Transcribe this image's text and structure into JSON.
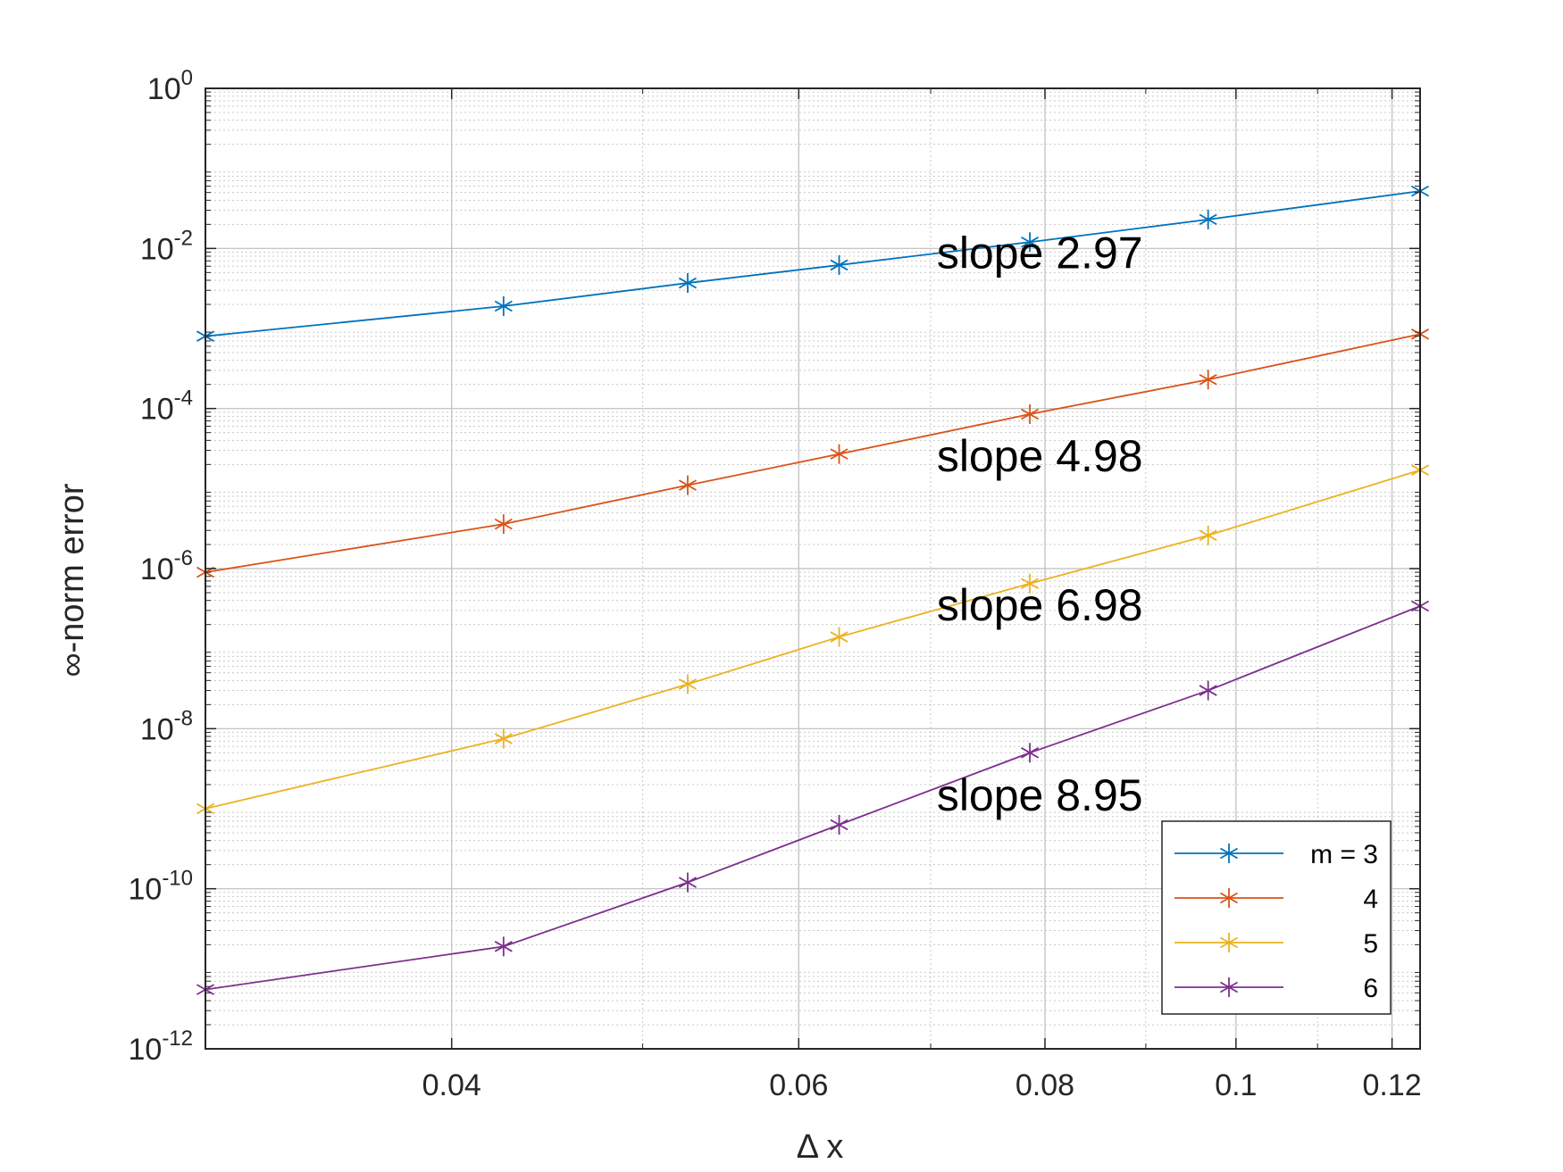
{
  "chart_data": {
    "type": "line",
    "xscale": "log",
    "yscale": "log",
    "xlabel": "Δ x",
    "ylabel": "∞-norm error",
    "xlim": [
      0.03,
      0.124
    ],
    "ylim": [
      1e-12,
      1
    ],
    "xticks": [
      {
        "value": 0.04,
        "label": "0.04"
      },
      {
        "value": 0.06,
        "label": "0.06"
      },
      {
        "value": 0.08,
        "label": "0.08"
      },
      {
        "value": 0.1,
        "label": "0.1"
      },
      {
        "value": 0.12,
        "label": "0.12"
      }
    ],
    "yticks": [
      {
        "value": 1.0,
        "base": "10",
        "exp": "0"
      },
      {
        "value": 0.01,
        "base": "10",
        "exp": "-2"
      },
      {
        "value": 0.0001,
        "base": "10",
        "exp": "-4"
      },
      {
        "value": 1e-06,
        "base": "10",
        "exp": "-6"
      },
      {
        "value": 1e-08,
        "base": "10",
        "exp": "-8"
      },
      {
        "value": 1e-10,
        "base": "10",
        "exp": "-10"
      },
      {
        "value": 1e-12,
        "base": "10",
        "exp": "-12"
      }
    ],
    "grid": true,
    "minor_grid": true,
    "legend_position": "bottom-right",
    "x": [
      0.03,
      0.0425,
      0.0527,
      0.0629,
      0.0786,
      0.0968,
      0.124
    ],
    "series": [
      {
        "name": "m = 3",
        "color": "#0072BD",
        "values": [
          0.0008,
          0.0019,
          0.0037,
          0.0062,
          0.012,
          0.023,
          0.052
        ]
      },
      {
        "name": "4",
        "color": "#D95319",
        "values": [
          9e-07,
          3.6e-06,
          1.1e-05,
          2.7e-05,
          8.5e-05,
          0.00023,
          0.00085
        ]
      },
      {
        "name": "5",
        "color": "#EDB120",
        "values": [
          1e-09,
          7.5e-09,
          3.6e-08,
          1.4e-07,
          6.5e-07,
          2.6e-06,
          1.7e-05
        ]
      },
      {
        "name": "6",
        "color": "#7E2F8E",
        "values": [
          5.5e-12,
          1.9e-11,
          1.2e-10,
          6.3e-10,
          5e-09,
          3e-08,
          3.4e-07
        ]
      }
    ],
    "annotations": [
      {
        "text": "slope 2.97",
        "x": 0.0705,
        "y": 0.009
      },
      {
        "text": "slope 4.98",
        "x": 0.0705,
        "y": 2.6e-05
      },
      {
        "text": "slope 6.98",
        "x": 0.0705,
        "y": 3.6e-07
      },
      {
        "text": "slope 8.95",
        "x": 0.0705,
        "y": 1.5e-09
      }
    ]
  }
}
